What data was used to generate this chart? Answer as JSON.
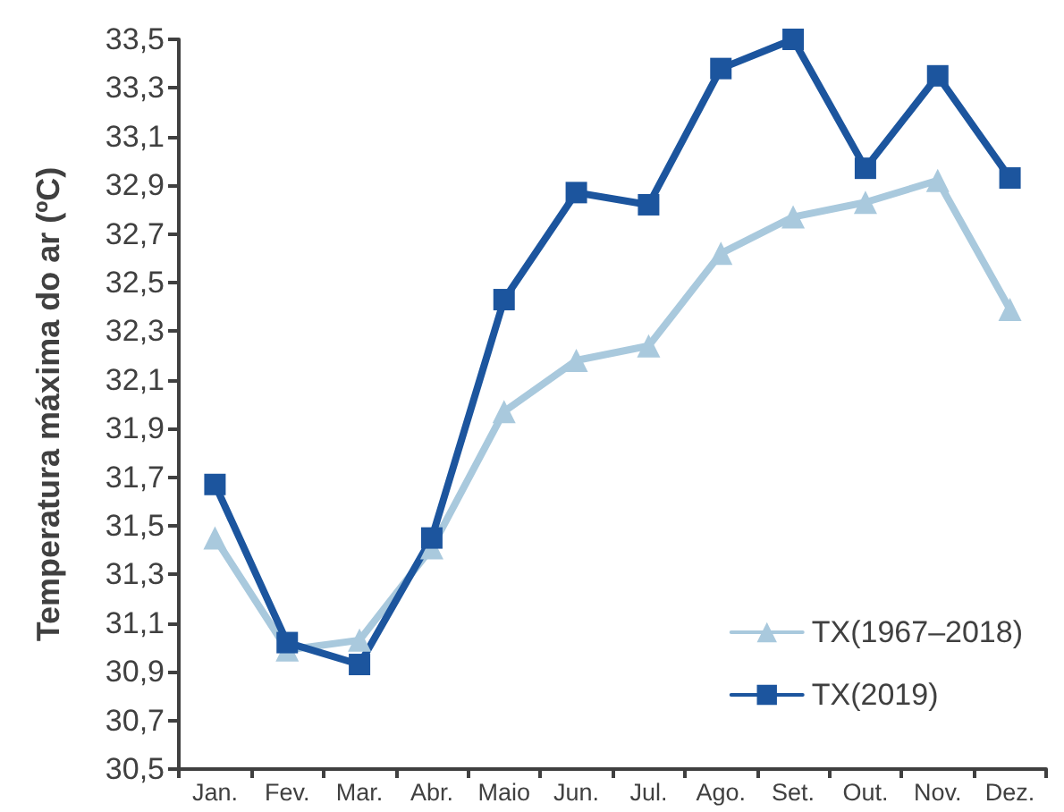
{
  "chart_data": {
    "type": "line",
    "ylabel": "Temperatura máxima do ar (ºC)",
    "categories": [
      "Jan.",
      "Fev.",
      "Mar.",
      "Abr.",
      "Maio",
      "Jun.",
      "Jul.",
      "Ago.",
      "Set.",
      "Out.",
      "Nov.",
      "Dez."
    ],
    "series": [
      {
        "name": "TX(1967–2018)",
        "color": "#a9c9dd",
        "marker": "triangle",
        "values": [
          31.45,
          30.99,
          31.03,
          31.41,
          31.97,
          32.18,
          32.24,
          32.62,
          32.77,
          32.83,
          32.92,
          32.39
        ]
      },
      {
        "name": "TX(2019)",
        "color": "#1c559e",
        "marker": "square",
        "values": [
          31.67,
          31.02,
          30.93,
          31.45,
          32.43,
          32.87,
          32.82,
          33.38,
          33.5,
          32.97,
          33.35,
          32.93
        ]
      }
    ],
    "ylim": [
      30.5,
      33.5
    ],
    "yticks": [
      {
        "value": 30.5,
        "label": "30,5"
      },
      {
        "value": 30.7,
        "label": "30,7"
      },
      {
        "value": 30.9,
        "label": "30,9"
      },
      {
        "value": 31.1,
        "label": "31,1"
      },
      {
        "value": 31.3,
        "label": "31,3"
      },
      {
        "value": 31.5,
        "label": "31,5"
      },
      {
        "value": 31.7,
        "label": "31,7"
      },
      {
        "value": 31.9,
        "label": "31,9"
      },
      {
        "value": 32.1,
        "label": "32,1"
      },
      {
        "value": 32.3,
        "label": "32,3"
      },
      {
        "value": 32.5,
        "label": "32,5"
      },
      {
        "value": 32.7,
        "label": "32,7"
      },
      {
        "value": 32.9,
        "label": "32,9"
      },
      {
        "value": 33.1,
        "label": "33,1"
      },
      {
        "value": 33.3,
        "label": "33,3"
      },
      {
        "value": 33.5,
        "label": "33,5"
      }
    ],
    "grid": false,
    "legend": "bottom right",
    "line_style": "solid"
  }
}
